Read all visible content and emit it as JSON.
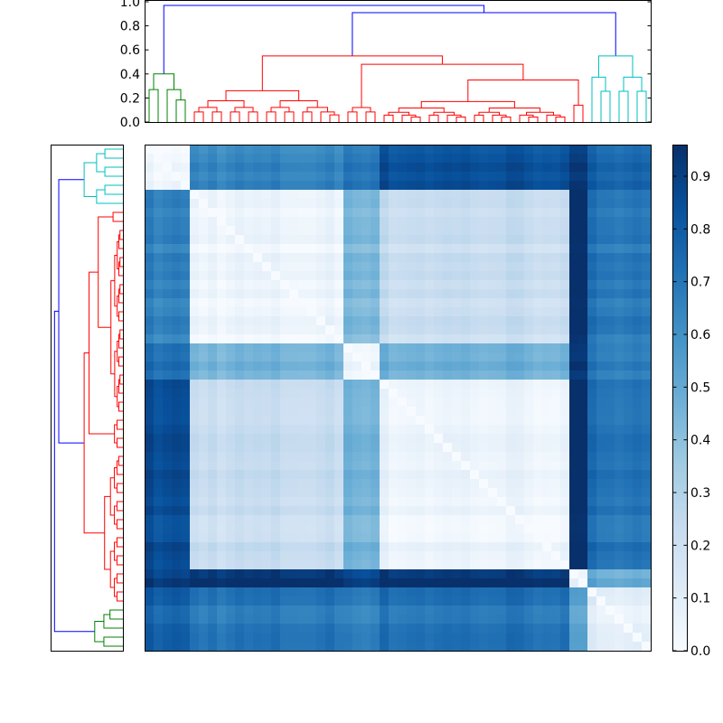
{
  "chart_data": {
    "type": "heatmap",
    "title": "",
    "xlabel": "",
    "ylabel": "",
    "n": 56,
    "colormap": "Blues",
    "colorbar": {
      "vmin": 0.0,
      "vmax": 0.96,
      "ticks": [
        0.0,
        0.1,
        0.2,
        0.3,
        0.4,
        0.5,
        0.6,
        0.7,
        0.8,
        0.9
      ],
      "tick_labels": [
        "0.0",
        "0.1",
        "0.2",
        "0.3",
        "0.4",
        "0.5",
        "0.6",
        "0.7",
        "0.8",
        "0.9"
      ]
    },
    "top_dendrogram": {
      "ylim": [
        0.0,
        1.0
      ],
      "ticks": [
        0.0,
        0.2,
        0.4,
        0.6,
        0.8,
        1.0
      ],
      "tick_labels": [
        "0.0",
        "0.2",
        "0.4",
        "0.6",
        "0.8",
        "1.0"
      ],
      "cluster_colors": [
        "#008000",
        "#ff0000",
        "#00bfbf"
      ],
      "root_color": "#0000ff"
    },
    "left_dendrogram": {
      "cluster_colors": [
        "#00bfbf",
        "#ff0000",
        "#008000"
      ],
      "root_color": "#0000ff"
    },
    "groups": [
      {
        "id": "A",
        "size": 5
      },
      {
        "id": "B",
        "size": 17
      },
      {
        "id": "C",
        "size": 4
      },
      {
        "id": "D",
        "size": 21
      },
      {
        "id": "E",
        "size": 2
      },
      {
        "id": "F",
        "size": 7
      }
    ],
    "block_values": [
      [
        0.03,
        0.65,
        0.72,
        0.85,
        0.9,
        0.78
      ],
      [
        0.65,
        0.04,
        0.45,
        0.22,
        0.95,
        0.7
      ],
      [
        0.72,
        0.45,
        0.05,
        0.47,
        0.9,
        0.68
      ],
      [
        0.85,
        0.22,
        0.47,
        0.05,
        0.95,
        0.72
      ],
      [
        0.9,
        0.95,
        0.9,
        0.95,
        0.04,
        0.5
      ],
      [
        0.78,
        0.7,
        0.68,
        0.72,
        0.5,
        0.1
      ]
    ]
  }
}
